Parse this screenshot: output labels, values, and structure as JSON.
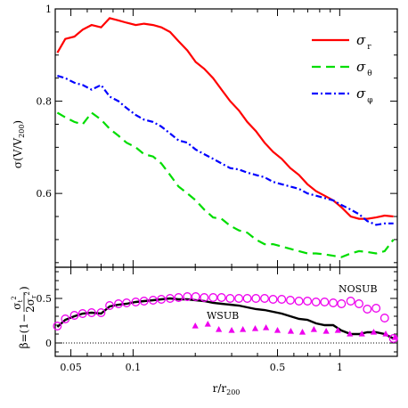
{
  "chart_data": [
    {
      "type": "line",
      "panel": "top",
      "ylabel": "σ(V/V200)",
      "xscale": "log",
      "xlim": [
        0.042,
        1.9
      ],
      "ylim": [
        0.44,
        1.0
      ],
      "yticks": [
        0.6,
        0.8,
        1
      ],
      "ytick_labels": [
        "0.6",
        "0.8",
        "1"
      ],
      "legend_position": "top-right",
      "series": [
        {
          "name": "σ_r",
          "legend_symbol": "σ",
          "legend_sub": "r",
          "color": "#ff0000",
          "dash": "solid",
          "x": [
            0.043,
            0.047,
            0.052,
            0.057,
            0.063,
            0.07,
            0.077,
            0.085,
            0.093,
            0.103,
            0.113,
            0.125,
            0.137,
            0.151,
            0.166,
            0.183,
            0.201,
            0.221,
            0.244,
            0.268,
            0.295,
            0.325,
            0.357,
            0.393,
            0.433,
            0.476,
            0.524,
            0.577,
            0.635,
            0.698,
            0.768,
            0.845,
            0.93,
            1.02,
            1.13,
            1.24,
            1.36,
            1.5,
            1.65,
            1.82
          ],
          "y": [
            0.905,
            0.935,
            0.94,
            0.955,
            0.965,
            0.96,
            0.98,
            0.975,
            0.97,
            0.965,
            0.968,
            0.965,
            0.96,
            0.95,
            0.93,
            0.91,
            0.885,
            0.87,
            0.85,
            0.825,
            0.8,
            0.78,
            0.755,
            0.735,
            0.71,
            0.69,
            0.675,
            0.655,
            0.64,
            0.62,
            0.605,
            0.595,
            0.585,
            0.57,
            0.55,
            0.545,
            0.545,
            0.548,
            0.552,
            0.55
          ]
        },
        {
          "name": "σ_θ",
          "legend_symbol": "σ",
          "legend_sub": "θ",
          "color": "#00dd00",
          "dash": "long-dash",
          "x": [
            0.043,
            0.047,
            0.052,
            0.057,
            0.063,
            0.07,
            0.077,
            0.085,
            0.093,
            0.103,
            0.113,
            0.125,
            0.137,
            0.151,
            0.166,
            0.183,
            0.201,
            0.221,
            0.244,
            0.268,
            0.295,
            0.325,
            0.357,
            0.393,
            0.433,
            0.476,
            0.524,
            0.577,
            0.635,
            0.698,
            0.768,
            0.845,
            0.93,
            1.02,
            1.13,
            1.24,
            1.36,
            1.5,
            1.65,
            1.82
          ],
          "y": [
            0.775,
            0.765,
            0.755,
            0.75,
            0.775,
            0.76,
            0.74,
            0.725,
            0.71,
            0.7,
            0.685,
            0.68,
            0.665,
            0.64,
            0.615,
            0.6,
            0.585,
            0.565,
            0.548,
            0.545,
            0.53,
            0.52,
            0.515,
            0.5,
            0.49,
            0.49,
            0.485,
            0.48,
            0.475,
            0.47,
            0.47,
            0.468,
            0.465,
            0.462,
            0.47,
            0.475,
            0.473,
            0.47,
            0.475,
            0.5
          ]
        },
        {
          "name": "σ_φ",
          "legend_symbol": "σ",
          "legend_sub": "φ",
          "color": "#0000ff",
          "dash": "dash-dot",
          "x": [
            0.043,
            0.047,
            0.052,
            0.057,
            0.063,
            0.07,
            0.077,
            0.085,
            0.093,
            0.103,
            0.113,
            0.125,
            0.137,
            0.151,
            0.166,
            0.183,
            0.201,
            0.221,
            0.244,
            0.268,
            0.295,
            0.325,
            0.357,
            0.393,
            0.433,
            0.476,
            0.524,
            0.577,
            0.635,
            0.698,
            0.768,
            0.845,
            0.93,
            1.02,
            1.13,
            1.24,
            1.36,
            1.5,
            1.65,
            1.82
          ],
          "y": [
            0.855,
            0.85,
            0.84,
            0.835,
            0.825,
            0.835,
            0.81,
            0.8,
            0.785,
            0.77,
            0.76,
            0.755,
            0.745,
            0.73,
            0.715,
            0.71,
            0.695,
            0.685,
            0.675,
            0.665,
            0.655,
            0.652,
            0.645,
            0.64,
            0.635,
            0.625,
            0.62,
            0.615,
            0.61,
            0.6,
            0.595,
            0.59,
            0.585,
            0.575,
            0.565,
            0.555,
            0.54,
            0.532,
            0.535,
            0.535
          ]
        }
      ]
    },
    {
      "type": "line",
      "panel": "bottom",
      "ylabel": "β=(1−σt²/2σr²)",
      "xlabel": "r/r200",
      "xscale": "log",
      "xlim": [
        0.042,
        1.9
      ],
      "ylim": [
        -0.15,
        0.85
      ],
      "yticks": [
        0,
        0.5
      ],
      "ytick_labels": [
        "0",
        "0.5"
      ],
      "xticks": [
        0.05,
        0.1,
        0.5,
        1
      ],
      "xtick_labels": [
        "0.05",
        "0.1",
        "0.5",
        "1"
      ],
      "annotations": [
        "WSUB",
        "NOSUB"
      ],
      "series": [
        {
          "name": "WSUB",
          "color": "#000000",
          "style": "line",
          "x": [
            0.043,
            0.047,
            0.052,
            0.057,
            0.063,
            0.07,
            0.077,
            0.085,
            0.093,
            0.103,
            0.113,
            0.125,
            0.137,
            0.151,
            0.166,
            0.183,
            0.201,
            0.221,
            0.244,
            0.268,
            0.295,
            0.325,
            0.357,
            0.393,
            0.433,
            0.476,
            0.524,
            0.577,
            0.635,
            0.698,
            0.768,
            0.845,
            0.93,
            1.02,
            1.13,
            1.24,
            1.36,
            1.5,
            1.65,
            1.82
          ],
          "y": [
            0.18,
            0.26,
            0.3,
            0.33,
            0.34,
            0.33,
            0.41,
            0.43,
            0.44,
            0.46,
            0.47,
            0.48,
            0.49,
            0.5,
            0.49,
            0.49,
            0.48,
            0.47,
            0.45,
            0.44,
            0.43,
            0.42,
            0.4,
            0.38,
            0.37,
            0.35,
            0.33,
            0.3,
            0.27,
            0.26,
            0.22,
            0.2,
            0.2,
            0.14,
            0.1,
            0.1,
            0.12,
            0.12,
            0.1,
            0.05
          ]
        },
        {
          "name": "NOSUB",
          "color": "#ee00ee",
          "style": "open-circle",
          "x": [
            0.043,
            0.047,
            0.052,
            0.057,
            0.063,
            0.07,
            0.077,
            0.085,
            0.093,
            0.103,
            0.113,
            0.125,
            0.137,
            0.151,
            0.166,
            0.183,
            0.201,
            0.221,
            0.244,
            0.268,
            0.295,
            0.325,
            0.357,
            0.393,
            0.433,
            0.476,
            0.524,
            0.577,
            0.635,
            0.698,
            0.768,
            0.845,
            0.93,
            1.02,
            1.13,
            1.24,
            1.36,
            1.5,
            1.65,
            1.82
          ],
          "y": [
            0.19,
            0.27,
            0.31,
            0.33,
            0.34,
            0.34,
            0.42,
            0.44,
            0.45,
            0.46,
            0.47,
            0.48,
            0.49,
            0.5,
            0.51,
            0.52,
            0.52,
            0.51,
            0.51,
            0.51,
            0.5,
            0.5,
            0.5,
            0.5,
            0.5,
            0.49,
            0.49,
            0.48,
            0.47,
            0.47,
            0.46,
            0.46,
            0.45,
            0.44,
            0.47,
            0.44,
            0.38,
            0.39,
            0.28,
            0.05
          ]
        },
        {
          "name": "triangles",
          "color": "#ee00ee",
          "style": "filled-triangle",
          "x": [
            0.2,
            0.23,
            0.26,
            0.3,
            0.34,
            0.39,
            0.44,
            0.5,
            0.58,
            0.66,
            0.75,
            0.86,
            0.98,
            1.12,
            1.28,
            1.46,
            1.67,
            1.85
          ],
          "y": [
            0.19,
            0.21,
            0.15,
            0.14,
            0.15,
            0.16,
            0.17,
            0.14,
            0.13,
            0.12,
            0.15,
            0.13,
            0.14,
            0.1,
            0.1,
            0.12,
            0.1,
            0.06
          ]
        }
      ]
    }
  ],
  "labels": {
    "top_ylabel_main": "σ(V/V",
    "top_ylabel_sub": "200",
    "top_ylabel_close": ")",
    "xlabel_main": "r/r",
    "xlabel_sub": "200",
    "wsub": "WSUB",
    "nosub": "NOSUB"
  }
}
